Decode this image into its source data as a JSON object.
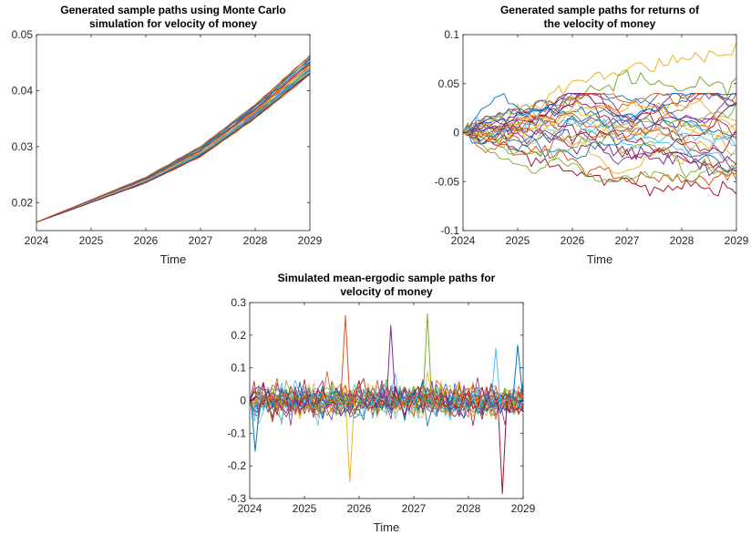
{
  "figure": {
    "palette": [
      "#0072BD",
      "#D95319",
      "#EDB120",
      "#7E2F8E",
      "#77AC30",
      "#4DBEEE",
      "#A2142F"
    ]
  },
  "chart_data": [
    {
      "type": "line",
      "title": [
        "Generated sample paths using Monte Carlo",
        "simulation for velocity of money"
      ],
      "xlabel": "Time",
      "ylabel": "",
      "xlim": [
        2024,
        2029
      ],
      "ylim": [
        0.015,
        0.05
      ],
      "xticks": [
        2024,
        2025,
        2026,
        2027,
        2028,
        2029
      ],
      "xtick_labels": [
        "2024",
        "2025",
        "2026",
        "2027",
        "2028",
        "2029"
      ],
      "yticks": [
        0.02,
        0.03,
        0.04,
        0.05
      ],
      "ytick_labels": [
        "0.02",
        "0.03",
        "0.04",
        "0.05"
      ],
      "grid": false,
      "legend": "none",
      "n_paths": 30,
      "x": [
        2024,
        2025,
        2026,
        2027,
        2028,
        2029
      ],
      "series": [
        {
          "values": [
            0.0165,
            0.0205,
            0.0245,
            0.03,
            0.0375,
            0.0462
          ]
        },
        {
          "values": [
            0.0165,
            0.0204,
            0.0243,
            0.0297,
            0.037,
            0.0455
          ]
        },
        {
          "values": [
            0.0165,
            0.0203,
            0.0241,
            0.0293,
            0.0365,
            0.0448
          ]
        },
        {
          "values": [
            0.0165,
            0.0202,
            0.0239,
            0.029,
            0.036,
            0.044
          ]
        },
        {
          "values": [
            0.0165,
            0.0201,
            0.0237,
            0.0286,
            0.0354,
            0.0432
          ]
        },
        {
          "values": [
            0.0165,
            0.02,
            0.0235,
            0.0282,
            0.035,
            0.0428
          ]
        }
      ]
    },
    {
      "type": "line",
      "title": [
        "Generated sample paths for returns of",
        "the velocity of money"
      ],
      "xlabel": "Time",
      "ylabel": "",
      "xlim": [
        2024,
        2029
      ],
      "ylim": [
        -0.1,
        0.1
      ],
      "xticks": [
        2024,
        2025,
        2026,
        2027,
        2028,
        2029
      ],
      "xtick_labels": [
        "2024",
        "2025",
        "2026",
        "2027",
        "2028",
        "2029"
      ],
      "yticks": [
        -0.1,
        -0.05,
        0,
        0.05,
        0.1
      ],
      "ytick_labels": [
        "-0.1",
        "-0.05",
        "0",
        "0.05",
        "0.1"
      ],
      "grid": false,
      "legend": "none",
      "n_paths": 30,
      "x": [
        2024,
        2025,
        2026,
        2027,
        2028,
        2029
      ],
      "series": [
        {
          "values": [
            0,
            0.02,
            0.05,
            0.065,
            0.075,
            0.088
          ]
        },
        {
          "values": [
            0,
            0.025,
            0.035,
            0.055,
            0.045,
            0.05
          ]
        },
        {
          "values": [
            0,
            -0.02,
            -0.04,
            -0.05,
            -0.055,
            -0.06
          ]
        },
        {
          "values": [
            0,
            -0.01,
            -0.03,
            -0.045,
            -0.05,
            -0.04
          ]
        },
        {
          "values": [
            0,
            0.005,
            -0.01,
            -0.02,
            -0.03,
            -0.035
          ]
        }
      ]
    },
    {
      "type": "line",
      "title": [
        "Simulated mean-ergodic sample paths for",
        "velocity of money"
      ],
      "xlabel": "Time",
      "ylabel": "",
      "xlim": [
        2024,
        2029
      ],
      "ylim": [
        -0.3,
        0.3
      ],
      "xticks": [
        2024,
        2025,
        2026,
        2027,
        2028,
        2029
      ],
      "xtick_labels": [
        "2024",
        "2025",
        "2026",
        "2027",
        "2028",
        "2029"
      ],
      "yticks": [
        -0.3,
        -0.2,
        -0.1,
        0,
        0.1,
        0.2,
        0.3
      ],
      "ytick_labels": [
        "-0.3",
        "-0.2",
        "-0.1",
        "0",
        "0.1",
        "0.2",
        "0.3"
      ],
      "grid": false,
      "legend": "none",
      "n_paths": 30,
      "spikes": [
        {
          "x": 2024.1,
          "y": -0.155
        },
        {
          "x": 2025.75,
          "y": 0.26
        },
        {
          "x": 2025.83,
          "y": -0.25
        },
        {
          "x": 2026.58,
          "y": 0.23
        },
        {
          "x": 2027.25,
          "y": 0.265
        },
        {
          "x": 2028.5,
          "y": 0.16
        },
        {
          "x": 2028.62,
          "y": -0.285
        },
        {
          "x": 2028.9,
          "y": 0.17
        }
      ]
    }
  ]
}
